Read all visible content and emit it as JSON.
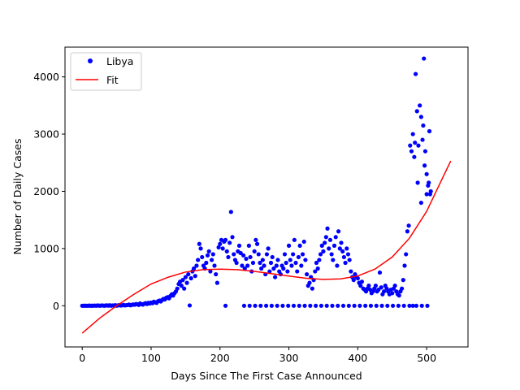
{
  "chart_data": {
    "type": "scatter",
    "xlabel": "Days Since The First Case Announced",
    "ylabel": "Number of Daily Cases",
    "xlim": [
      -25,
      560
    ],
    "ylim": [
      -720,
      4520
    ],
    "xticks": [
      0,
      100,
      200,
      300,
      400,
      500
    ],
    "yticks": [
      0,
      1000,
      2000,
      3000,
      4000
    ],
    "xtick_labels": [
      "0",
      "100",
      "200",
      "300",
      "400",
      "500"
    ],
    "ytick_labels": [
      "0",
      "1000",
      "2000",
      "3000",
      "4000"
    ],
    "grid": false,
    "legend_position": "top-left",
    "series": [
      {
        "name": "Libya",
        "kind": "scatter",
        "color": "#0000ff",
        "points": [
          [
            0,
            0
          ],
          [
            2,
            0
          ],
          [
            4,
            1
          ],
          [
            6,
            0
          ],
          [
            8,
            0
          ],
          [
            10,
            2
          ],
          [
            12,
            0
          ],
          [
            14,
            1
          ],
          [
            16,
            0
          ],
          [
            18,
            3
          ],
          [
            20,
            0
          ],
          [
            22,
            4
          ],
          [
            24,
            2
          ],
          [
            26,
            0
          ],
          [
            28,
            5
          ],
          [
            30,
            3
          ],
          [
            32,
            0
          ],
          [
            34,
            4
          ],
          [
            36,
            6
          ],
          [
            38,
            2
          ],
          [
            40,
            8
          ],
          [
            42,
            0
          ],
          [
            44,
            5
          ],
          [
            46,
            3
          ],
          [
            48,
            10
          ],
          [
            50,
            0
          ],
          [
            52,
            6
          ],
          [
            54,
            12
          ],
          [
            56,
            4
          ],
          [
            58,
            8
          ],
          [
            60,
            15
          ],
          [
            62,
            5
          ],
          [
            64,
            10
          ],
          [
            66,
            12
          ],
          [
            68,
            20
          ],
          [
            70,
            8
          ],
          [
            72,
            15
          ],
          [
            74,
            22
          ],
          [
            76,
            18
          ],
          [
            78,
            30
          ],
          [
            80,
            25
          ],
          [
            82,
            15
          ],
          [
            84,
            40
          ],
          [
            86,
            28
          ],
          [
            88,
            20
          ],
          [
            90,
            35
          ],
          [
            92,
            45
          ],
          [
            94,
            30
          ],
          [
            96,
            50
          ],
          [
            98,
            40
          ],
          [
            100,
            55
          ],
          [
            102,
            45
          ],
          [
            104,
            70
          ],
          [
            106,
            60
          ],
          [
            108,
            50
          ],
          [
            110,
            80
          ],
          [
            112,
            90
          ],
          [
            114,
            75
          ],
          [
            116,
            100
          ],
          [
            118,
            120
          ],
          [
            120,
            110
          ],
          [
            122,
            140
          ],
          [
            124,
            150
          ],
          [
            126,
            130
          ],
          [
            128,
            170
          ],
          [
            130,
            200
          ],
          [
            132,
            180
          ],
          [
            134,
            220
          ],
          [
            136,
            250
          ],
          [
            138,
            300
          ],
          [
            140,
            380
          ],
          [
            142,
            420
          ],
          [
            144,
            350
          ],
          [
            146,
            450
          ],
          [
            148,
            300
          ],
          [
            150,
            500
          ],
          [
            152,
            400
          ],
          [
            154,
            550
          ],
          [
            156,
            5
          ],
          [
            158,
            480
          ],
          [
            160,
            600
          ],
          [
            162,
            650
          ],
          [
            164,
            520
          ],
          [
            166,
            700
          ],
          [
            168,
            800
          ],
          [
            170,
            1080
          ],
          [
            172,
            1000
          ],
          [
            174,
            850
          ],
          [
            176,
            700
          ],
          [
            178,
            650
          ],
          [
            180,
            750
          ],
          [
            182,
            880
          ],
          [
            184,
            950
          ],
          [
            186,
            600
          ],
          [
            188,
            800
          ],
          [
            190,
            900
          ],
          [
            192,
            700
          ],
          [
            194,
            550
          ],
          [
            196,
            400
          ],
          [
            198,
            1020
          ],
          [
            200,
            1080
          ],
          [
            202,
            1150
          ],
          [
            204,
            1000
          ],
          [
            206,
            1120
          ],
          [
            208,
            1150
          ],
          [
            210,
            950
          ],
          [
            212,
            850
          ],
          [
            214,
            1100
          ],
          [
            216,
            1640
          ],
          [
            218,
            1200
          ],
          [
            220,
            900
          ],
          [
            222,
            800
          ],
          [
            224,
            750
          ],
          [
            226,
            950
          ],
          [
            228,
            1050
          ],
          [
            230,
            920
          ],
          [
            232,
            700
          ],
          [
            234,
            880
          ],
          [
            236,
            650
          ],
          [
            238,
            820
          ],
          [
            240,
            700
          ],
          [
            242,
            1050
          ],
          [
            244,
            850
          ],
          [
            246,
            600
          ],
          [
            248,
            750
          ],
          [
            250,
            950
          ],
          [
            252,
            1150
          ],
          [
            254,
            1080
          ],
          [
            256,
            900
          ],
          [
            258,
            750
          ],
          [
            260,
            650
          ],
          [
            262,
            800
          ],
          [
            264,
            700
          ],
          [
            266,
            550
          ],
          [
            268,
            900
          ],
          [
            270,
            1000
          ],
          [
            272,
            600
          ],
          [
            274,
            750
          ],
          [
            276,
            850
          ],
          [
            278,
            650
          ],
          [
            280,
            500
          ],
          [
            282,
            700
          ],
          [
            284,
            800
          ],
          [
            286,
            600
          ],
          [
            288,
            550
          ],
          [
            290,
            700
          ],
          [
            292,
            650
          ],
          [
            294,
            900
          ],
          [
            296,
            750
          ],
          [
            298,
            600
          ],
          [
            300,
            1050
          ],
          [
            302,
            800
          ],
          [
            304,
            700
          ],
          [
            306,
            900
          ],
          [
            308,
            1150
          ],
          [
            310,
            750
          ],
          [
            312,
            600
          ],
          [
            314,
            850
          ],
          [
            316,
            1050
          ],
          [
            318,
            700
          ],
          [
            320,
            900
          ],
          [
            322,
            1120
          ],
          [
            324,
            800
          ],
          [
            326,
            550
          ],
          [
            328,
            350
          ],
          [
            330,
            400
          ],
          [
            332,
            500
          ],
          [
            334,
            300
          ],
          [
            336,
            450
          ],
          [
            338,
            600
          ],
          [
            340,
            750
          ],
          [
            342,
            650
          ],
          [
            344,
            800
          ],
          [
            346,
            900
          ],
          [
            348,
            1050
          ],
          [
            350,
            950
          ],
          [
            352,
            1100
          ],
          [
            354,
            1200
          ],
          [
            356,
            1350
          ],
          [
            358,
            1000
          ],
          [
            360,
            1150
          ],
          [
            362,
            900
          ],
          [
            364,
            800
          ],
          [
            366,
            1050
          ],
          [
            368,
            1200
          ],
          [
            370,
            700
          ],
          [
            372,
            1300
          ],
          [
            374,
            1000
          ],
          [
            376,
            1100
          ],
          [
            378,
            950
          ],
          [
            380,
            850
          ],
          [
            382,
            750
          ],
          [
            384,
            1000
          ],
          [
            386,
            900
          ],
          [
            388,
            800
          ],
          [
            390,
            600
          ],
          [
            392,
            500
          ],
          [
            394,
            450
          ],
          [
            396,
            550
          ],
          [
            398,
            500
          ],
          [
            400,
            480
          ],
          [
            402,
            400
          ],
          [
            404,
            350
          ],
          [
            406,
            420
          ],
          [
            408,
            300
          ],
          [
            410,
            280
          ],
          [
            412,
            250
          ],
          [
            414,
            300
          ],
          [
            416,
            350
          ],
          [
            418,
            280
          ],
          [
            420,
            220
          ],
          [
            422,
            250
          ],
          [
            424,
            300
          ],
          [
            426,
            350
          ],
          [
            428,
            250
          ],
          [
            430,
            280
          ],
          [
            432,
            580
          ],
          [
            434,
            320
          ],
          [
            436,
            200
          ],
          [
            438,
            250
          ],
          [
            440,
            350
          ],
          [
            442,
            300
          ],
          [
            444,
            250
          ],
          [
            446,
            200
          ],
          [
            448,
            280
          ],
          [
            450,
            220
          ],
          [
            452,
            300
          ],
          [
            454,
            350
          ],
          [
            456,
            250
          ],
          [
            458,
            200
          ],
          [
            460,
            180
          ],
          [
            462,
            250
          ],
          [
            464,
            300
          ],
          [
            466,
            450
          ],
          [
            468,
            700
          ],
          [
            470,
            900
          ],
          [
            472,
            1300
          ],
          [
            474,
            1400
          ],
          [
            476,
            2800
          ],
          [
            478,
            2700
          ],
          [
            480,
            3000
          ],
          [
            482,
            2600
          ],
          [
            484,
            4050
          ],
          [
            486,
            3400
          ],
          [
            488,
            2800
          ],
          [
            490,
            3500
          ],
          [
            492,
            3300
          ],
          [
            494,
            2900
          ],
          [
            496,
            4320
          ],
          [
            498,
            2700
          ],
          [
            500,
            1950
          ],
          [
            502,
            2100
          ],
          [
            504,
            3050
          ],
          [
            506,
            2000
          ],
          [
            480,
            0
          ],
          [
            483,
            2850
          ],
          [
            487,
            2150
          ],
          [
            492,
            1800
          ],
          [
            495,
            3150
          ],
          [
            497,
            2450
          ],
          [
            500,
            2300
          ],
          [
            503,
            2150
          ],
          [
            505,
            1950
          ],
          [
            235,
            0
          ],
          [
            243,
            0
          ],
          [
            251,
            0
          ],
          [
            259,
            0
          ],
          [
            267,
            0
          ],
          [
            275,
            0
          ],
          [
            283,
            0
          ],
          [
            291,
            0
          ],
          [
            299,
            0
          ],
          [
            307,
            0
          ],
          [
            315,
            0
          ],
          [
            323,
            0
          ],
          [
            331,
            0
          ],
          [
            339,
            0
          ],
          [
            347,
            0
          ],
          [
            355,
            0
          ],
          [
            363,
            0
          ],
          [
            371,
            0
          ],
          [
            379,
            0
          ],
          [
            387,
            0
          ],
          [
            395,
            0
          ],
          [
            403,
            0
          ],
          [
            411,
            0
          ],
          [
            419,
            0
          ],
          [
            427,
            0
          ],
          [
            435,
            0
          ],
          [
            443,
            0
          ],
          [
            451,
            0
          ],
          [
            459,
            0
          ],
          [
            467,
            0
          ],
          [
            475,
            0
          ],
          [
            485,
            0
          ],
          [
            493,
            0
          ],
          [
            501,
            0
          ],
          [
            208,
            0
          ]
        ]
      },
      {
        "name": "Fit",
        "kind": "line",
        "color": "#ff0000",
        "points": [
          [
            0,
            -480
          ],
          [
            25,
            -220
          ],
          [
            50,
            0
          ],
          [
            75,
            200
          ],
          [
            100,
            380
          ],
          [
            125,
            500
          ],
          [
            150,
            590
          ],
          [
            175,
            630
          ],
          [
            200,
            640
          ],
          [
            225,
            630
          ],
          [
            250,
            600
          ],
          [
            275,
            560
          ],
          [
            300,
            520
          ],
          [
            325,
            480
          ],
          [
            350,
            460
          ],
          [
            375,
            470
          ],
          [
            400,
            520
          ],
          [
            425,
            640
          ],
          [
            450,
            850
          ],
          [
            475,
            1180
          ],
          [
            500,
            1650
          ],
          [
            525,
            2280
          ],
          [
            535,
            2530
          ]
        ]
      }
    ]
  }
}
